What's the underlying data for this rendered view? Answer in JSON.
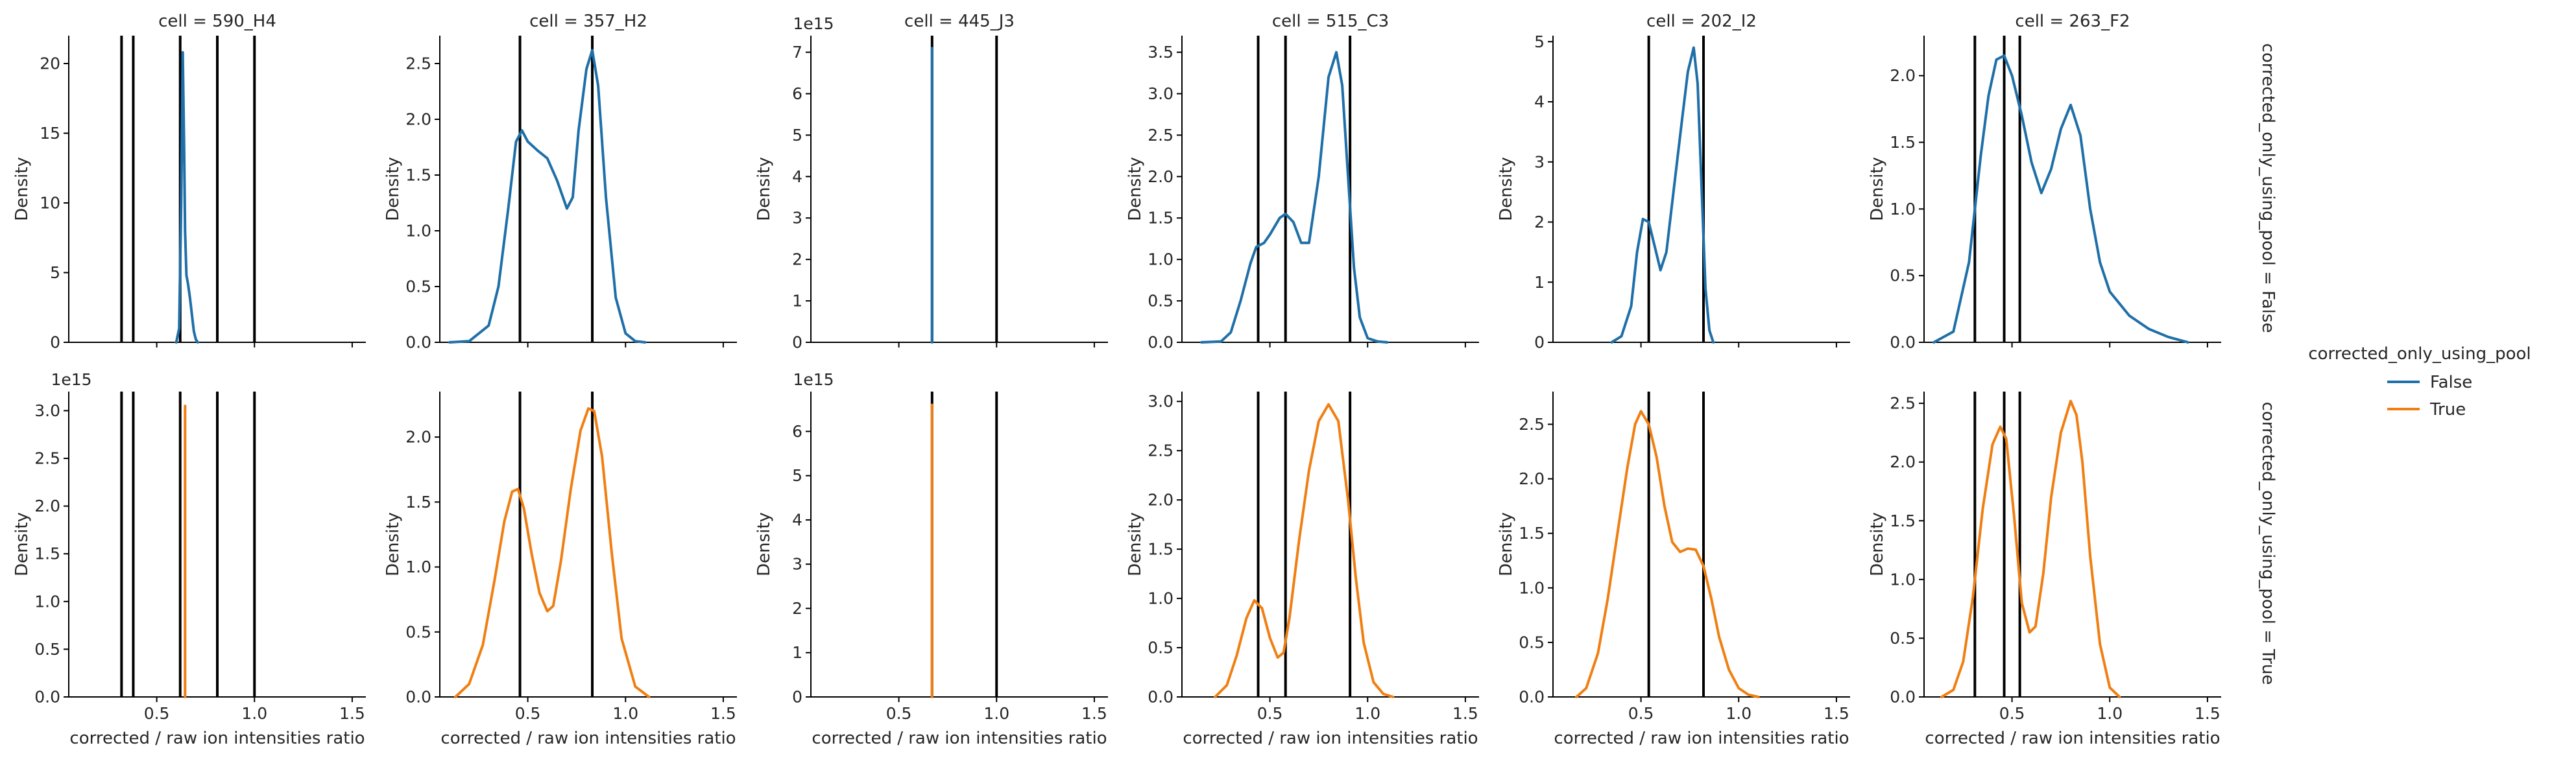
{
  "figure": {
    "xlabel": "corrected / raw ion intensities ratio",
    "ylabel": "Density",
    "xlim": [
      0.05,
      1.57
    ],
    "xticks": [
      0.5,
      1.0,
      1.5
    ],
    "xticklabels": [
      "0.5",
      "1.0",
      "1.5"
    ],
    "row_labels": [
      "corrected_only_using_pool = False",
      "corrected_only_using_pool = True"
    ],
    "legend": {
      "title": "corrected_only_using_pool",
      "entries": [
        {
          "label": "False",
          "color": "#1f6fa8"
        },
        {
          "label": "True",
          "color": "#f07f13"
        }
      ]
    },
    "vline_color": "#000000"
  },
  "chart_data": [
    {
      "type": "line",
      "title": "cell = 590_H4",
      "row": "corrected_only_using_pool = False",
      "series": "False",
      "ylim": [
        0,
        22
      ],
      "yticks": [
        0,
        5,
        10,
        15,
        20
      ],
      "yticklabels": [
        "0",
        "5",
        "10",
        "15",
        "20"
      ],
      "offset_text": "",
      "vlines": [
        0.32,
        0.38,
        0.62,
        0.81,
        1.0
      ],
      "x": [
        0.6,
        0.615,
        0.625,
        0.633,
        0.64,
        0.645,
        0.652,
        0.66,
        0.67,
        0.68,
        0.69,
        0.7,
        0.71
      ],
      "y": [
        0,
        1,
        10,
        20.8,
        14,
        8,
        4.8,
        4.2,
        3.2,
        2,
        0.8,
        0.2,
        0
      ]
    },
    {
      "type": "line",
      "title": "cell = 357_H2",
      "row": "corrected_only_using_pool = False",
      "series": "False",
      "ylim": [
        0,
        2.75
      ],
      "yticks": [
        0,
        0.5,
        1.0,
        1.5,
        2.0,
        2.5
      ],
      "yticklabels": [
        "0.0",
        "0.5",
        "1.0",
        "1.5",
        "2.0",
        "2.5"
      ],
      "offset_text": "",
      "vlines": [
        0.46,
        0.83
      ],
      "x": [
        0.1,
        0.2,
        0.3,
        0.35,
        0.4,
        0.44,
        0.47,
        0.5,
        0.55,
        0.6,
        0.65,
        0.7,
        0.73,
        0.76,
        0.8,
        0.83,
        0.86,
        0.9,
        0.95,
        1.0,
        1.05,
        1.1
      ],
      "y": [
        0,
        0.01,
        0.15,
        0.5,
        1.2,
        1.8,
        1.9,
        1.8,
        1.72,
        1.65,
        1.45,
        1.2,
        1.3,
        1.9,
        2.45,
        2.62,
        2.3,
        1.3,
        0.4,
        0.08,
        0.01,
        0
      ]
    },
    {
      "type": "line",
      "title": "cell = 445_J3",
      "row": "corrected_only_using_pool = False",
      "series": "False",
      "ylim": [
        0,
        7.4
      ],
      "yticks": [
        0,
        1,
        2,
        3,
        4,
        5,
        6,
        7
      ],
      "yticklabels": [
        "0",
        "1",
        "2",
        "3",
        "4",
        "5",
        "6",
        "7"
      ],
      "offset_text": "1e15",
      "vlines": [
        0.67,
        1.0
      ],
      "x": [
        0.67,
        0.67
      ],
      "y": [
        0,
        7.1
      ]
    },
    {
      "type": "line",
      "title": "cell = 515_C3",
      "row": "corrected_only_using_pool = False",
      "series": "False",
      "ylim": [
        0,
        3.7
      ],
      "yticks": [
        0,
        0.5,
        1.0,
        1.5,
        2.0,
        2.5,
        3.0,
        3.5
      ],
      "yticklabels": [
        "0.0",
        "0.5",
        "1.0",
        "1.5",
        "2.0",
        "2.5",
        "3.0",
        "3.5"
      ],
      "offset_text": "",
      "vlines": [
        0.44,
        0.58,
        0.91
      ],
      "x": [
        0.15,
        0.25,
        0.3,
        0.35,
        0.4,
        0.43,
        0.47,
        0.5,
        0.55,
        0.58,
        0.62,
        0.66,
        0.7,
        0.75,
        0.8,
        0.84,
        0.87,
        0.9,
        0.93,
        0.96,
        1.0,
        1.05,
        1.1
      ],
      "y": [
        0,
        0.01,
        0.12,
        0.5,
        0.95,
        1.15,
        1.2,
        1.3,
        1.5,
        1.55,
        1.45,
        1.2,
        1.2,
        2.0,
        3.2,
        3.5,
        3.1,
        2.0,
        0.9,
        0.3,
        0.05,
        0.01,
        0
      ]
    },
    {
      "type": "line",
      "title": "cell = 202_I2",
      "row": "corrected_only_using_pool = False",
      "series": "False",
      "ylim": [
        0,
        5.1
      ],
      "yticks": [
        0,
        1,
        2,
        3,
        4,
        5
      ],
      "yticklabels": [
        "0",
        "1",
        "2",
        "3",
        "4",
        "5"
      ],
      "offset_text": "",
      "vlines": [
        0.54,
        0.82
      ],
      "x": [
        0.35,
        0.4,
        0.45,
        0.48,
        0.51,
        0.54,
        0.57,
        0.6,
        0.63,
        0.67,
        0.71,
        0.74,
        0.77,
        0.79,
        0.81,
        0.83,
        0.85,
        0.87
      ],
      "y": [
        0,
        0.1,
        0.6,
        1.5,
        2.05,
        2.0,
        1.6,
        1.2,
        1.5,
        2.6,
        3.7,
        4.5,
        4.9,
        4.3,
        2.6,
        0.9,
        0.2,
        0
      ]
    },
    {
      "type": "line",
      "title": "cell = 263_F2",
      "row": "corrected_only_using_pool = False",
      "series": "False",
      "ylim": [
        0,
        2.3
      ],
      "yticks": [
        0,
        0.5,
        1.0,
        1.5,
        2.0
      ],
      "yticklabels": [
        "0.0",
        "0.5",
        "1.0",
        "1.5",
        "2.0"
      ],
      "offset_text": "",
      "vlines": [
        0.31,
        0.46,
        0.54
      ],
      "x": [
        0.1,
        0.2,
        0.28,
        0.34,
        0.38,
        0.42,
        0.46,
        0.5,
        0.55,
        0.6,
        0.65,
        0.7,
        0.75,
        0.8,
        0.85,
        0.9,
        0.95,
        1.0,
        1.1,
        1.2,
        1.3,
        1.4
      ],
      "y": [
        0,
        0.08,
        0.6,
        1.4,
        1.85,
        2.12,
        2.15,
        2.0,
        1.7,
        1.35,
        1.12,
        1.3,
        1.6,
        1.78,
        1.55,
        1.0,
        0.6,
        0.38,
        0.2,
        0.1,
        0.04,
        0
      ]
    },
    {
      "type": "line",
      "title": "",
      "row": "corrected_only_using_pool = True",
      "series": "True",
      "ylim": [
        0,
        3.2
      ],
      "yticks": [
        0,
        0.5,
        1.0,
        1.5,
        2.0,
        2.5,
        3.0
      ],
      "yticklabels": [
        "0.0",
        "0.5",
        "1.0",
        "1.5",
        "2.0",
        "2.5",
        "3.0"
      ],
      "offset_text": "1e15",
      "vlines": [
        0.32,
        0.38,
        0.62,
        0.81,
        1.0
      ],
      "x": [
        0.645,
        0.645
      ],
      "y": [
        0,
        3.05
      ]
    },
    {
      "type": "line",
      "title": "",
      "row": "corrected_only_using_pool = True",
      "series": "True",
      "ylim": [
        0,
        2.35
      ],
      "yticks": [
        0,
        0.5,
        1.0,
        1.5,
        2.0
      ],
      "yticklabels": [
        "0.0",
        "0.5",
        "1.0",
        "1.5",
        "2.0"
      ],
      "offset_text": "",
      "vlines": [
        0.46,
        0.83
      ],
      "x": [
        0.13,
        0.2,
        0.27,
        0.33,
        0.38,
        0.42,
        0.45,
        0.48,
        0.52,
        0.56,
        0.6,
        0.63,
        0.67,
        0.72,
        0.77,
        0.81,
        0.84,
        0.88,
        0.93,
        0.98,
        1.05,
        1.12
      ],
      "y": [
        0,
        0.1,
        0.4,
        0.9,
        1.35,
        1.58,
        1.6,
        1.45,
        1.1,
        0.8,
        0.66,
        0.7,
        1.05,
        1.6,
        2.05,
        2.22,
        2.2,
        1.85,
        1.1,
        0.45,
        0.08,
        0
      ]
    },
    {
      "type": "line",
      "title": "",
      "row": "corrected_only_using_pool = True",
      "series": "True",
      "ylim": [
        0,
        6.9
      ],
      "yticks": [
        0,
        1,
        2,
        3,
        4,
        5,
        6
      ],
      "yticklabels": [
        "0",
        "1",
        "2",
        "3",
        "4",
        "5",
        "6"
      ],
      "offset_text": "1e15",
      "vlines": [
        0.67,
        1.0
      ],
      "x": [
        0.67,
        0.67
      ],
      "y": [
        0,
        6.6
      ]
    },
    {
      "type": "line",
      "title": "",
      "row": "corrected_only_using_pool = True",
      "series": "True",
      "ylim": [
        0,
        3.1
      ],
      "yticks": [
        0,
        0.5,
        1.0,
        1.5,
        2.0,
        2.5,
        3.0
      ],
      "yticklabels": [
        "0.0",
        "0.5",
        "1.0",
        "1.5",
        "2.0",
        "2.5",
        "3.0"
      ],
      "offset_text": "",
      "vlines": [
        0.44,
        0.58,
        0.91
      ],
      "x": [
        0.22,
        0.28,
        0.33,
        0.38,
        0.42,
        0.46,
        0.5,
        0.54,
        0.57,
        0.6,
        0.65,
        0.7,
        0.75,
        0.8,
        0.85,
        0.9,
        0.94,
        0.98,
        1.03,
        1.08,
        1.13
      ],
      "y": [
        0,
        0.12,
        0.42,
        0.8,
        0.98,
        0.9,
        0.6,
        0.4,
        0.45,
        0.8,
        1.6,
        2.3,
        2.8,
        2.97,
        2.8,
        2.0,
        1.2,
        0.55,
        0.15,
        0.03,
        0
      ]
    },
    {
      "type": "line",
      "title": "",
      "row": "corrected_only_using_pool = True",
      "series": "True",
      "ylim": [
        0,
        2.8
      ],
      "yticks": [
        0,
        0.5,
        1.0,
        1.5,
        2.0,
        2.5
      ],
      "yticklabels": [
        "0.0",
        "0.5",
        "1.0",
        "1.5",
        "2.0",
        "2.5"
      ],
      "offset_text": "",
      "vlines": [
        0.54,
        0.82
      ],
      "x": [
        0.17,
        0.22,
        0.28,
        0.33,
        0.38,
        0.43,
        0.47,
        0.5,
        0.54,
        0.58,
        0.62,
        0.66,
        0.7,
        0.74,
        0.78,
        0.82,
        0.86,
        0.9,
        0.95,
        1.0,
        1.05,
        1.1
      ],
      "y": [
        0,
        0.08,
        0.4,
        0.9,
        1.5,
        2.1,
        2.5,
        2.62,
        2.5,
        2.2,
        1.75,
        1.42,
        1.33,
        1.36,
        1.35,
        1.2,
        0.9,
        0.55,
        0.25,
        0.08,
        0.02,
        0
      ]
    },
    {
      "type": "line",
      "title": "",
      "row": "corrected_only_using_pool = True",
      "series": "True",
      "ylim": [
        0,
        2.6
      ],
      "yticks": [
        0,
        0.5,
        1.0,
        1.5,
        2.0,
        2.5
      ],
      "yticklabels": [
        "0.0",
        "0.5",
        "1.0",
        "1.5",
        "2.0",
        "2.5"
      ],
      "offset_text": "",
      "vlines": [
        0.31,
        0.46,
        0.54
      ],
      "x": [
        0.14,
        0.2,
        0.25,
        0.3,
        0.35,
        0.4,
        0.44,
        0.47,
        0.51,
        0.55,
        0.59,
        0.62,
        0.66,
        0.7,
        0.75,
        0.8,
        0.83,
        0.86,
        0.9,
        0.95,
        1.0,
        1.05
      ],
      "y": [
        0,
        0.06,
        0.3,
        0.85,
        1.6,
        2.15,
        2.3,
        2.2,
        1.55,
        0.8,
        0.55,
        0.6,
        1.05,
        1.7,
        2.25,
        2.52,
        2.4,
        2.0,
        1.2,
        0.45,
        0.08,
        0
      ]
    }
  ]
}
